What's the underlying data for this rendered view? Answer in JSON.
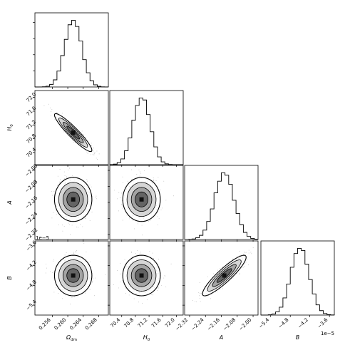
{
  "chart_data": {
    "type": "corner",
    "params": [
      {
        "key": "om",
        "label": "Ω",
        "label_sub": "dm",
        "range": [
          0.2515,
          0.2705
        ],
        "ticks": [
          0.256,
          0.26,
          0.264,
          0.268
        ],
        "tick_labels": [
          "0.256",
          "0.260",
          "0.264",
          "0.268"
        ],
        "mean": 0.2614,
        "sd": 0.0022
      },
      {
        "key": "h0",
        "label": "H",
        "label_sub": "0",
        "range": [
          70.05,
          72.2
        ],
        "ticks": [
          70.4,
          70.8,
          71.2,
          71.6,
          72.0
        ],
        "tick_labels": [
          "70.4",
          "70.8",
          "71.2",
          "71.6",
          "72.0"
        ],
        "mean": 70.98,
        "sd": 0.25
      },
      {
        "key": "a",
        "label": "A",
        "label_sub": "",
        "range": [
          -2.345,
          -1.975
        ],
        "ticks": [
          -2.32,
          -2.24,
          -2.16,
          -2.08,
          -2.0
        ],
        "tick_labels": [
          "−2.32",
          "−2.24",
          "−2.16",
          "−2.08",
          "−2.00"
        ],
        "mean": -2.145,
        "sd": 0.05
      },
      {
        "key": "b",
        "label": "B",
        "label_sub": "",
        "range": [
          -5.7,
          -3.45
        ],
        "ticks": [
          -5.4,
          -4.8,
          -4.2,
          -3.6
        ],
        "tick_labels": [
          "−5.4",
          "−4.8",
          "−4.2",
          "−3.6"
        ],
        "mean": -4.5,
        "sd": 0.28
      }
    ],
    "correlations": [
      {
        "i": 1,
        "j": 0,
        "rho": -0.93
      },
      {
        "i": 2,
        "j": 0,
        "rho": 0.0
      },
      {
        "i": 2,
        "j": 1,
        "rho": 0.0
      },
      {
        "i": 3,
        "j": 0,
        "rho": 0.0
      },
      {
        "i": 3,
        "j": 1,
        "rho": 0.0
      },
      {
        "i": 3,
        "j": 2,
        "rho": 0.9
      }
    ],
    "offset_labels": {
      "b_row": "1e−5",
      "b_col": "1e−5"
    },
    "grid": false,
    "legend": "none"
  }
}
